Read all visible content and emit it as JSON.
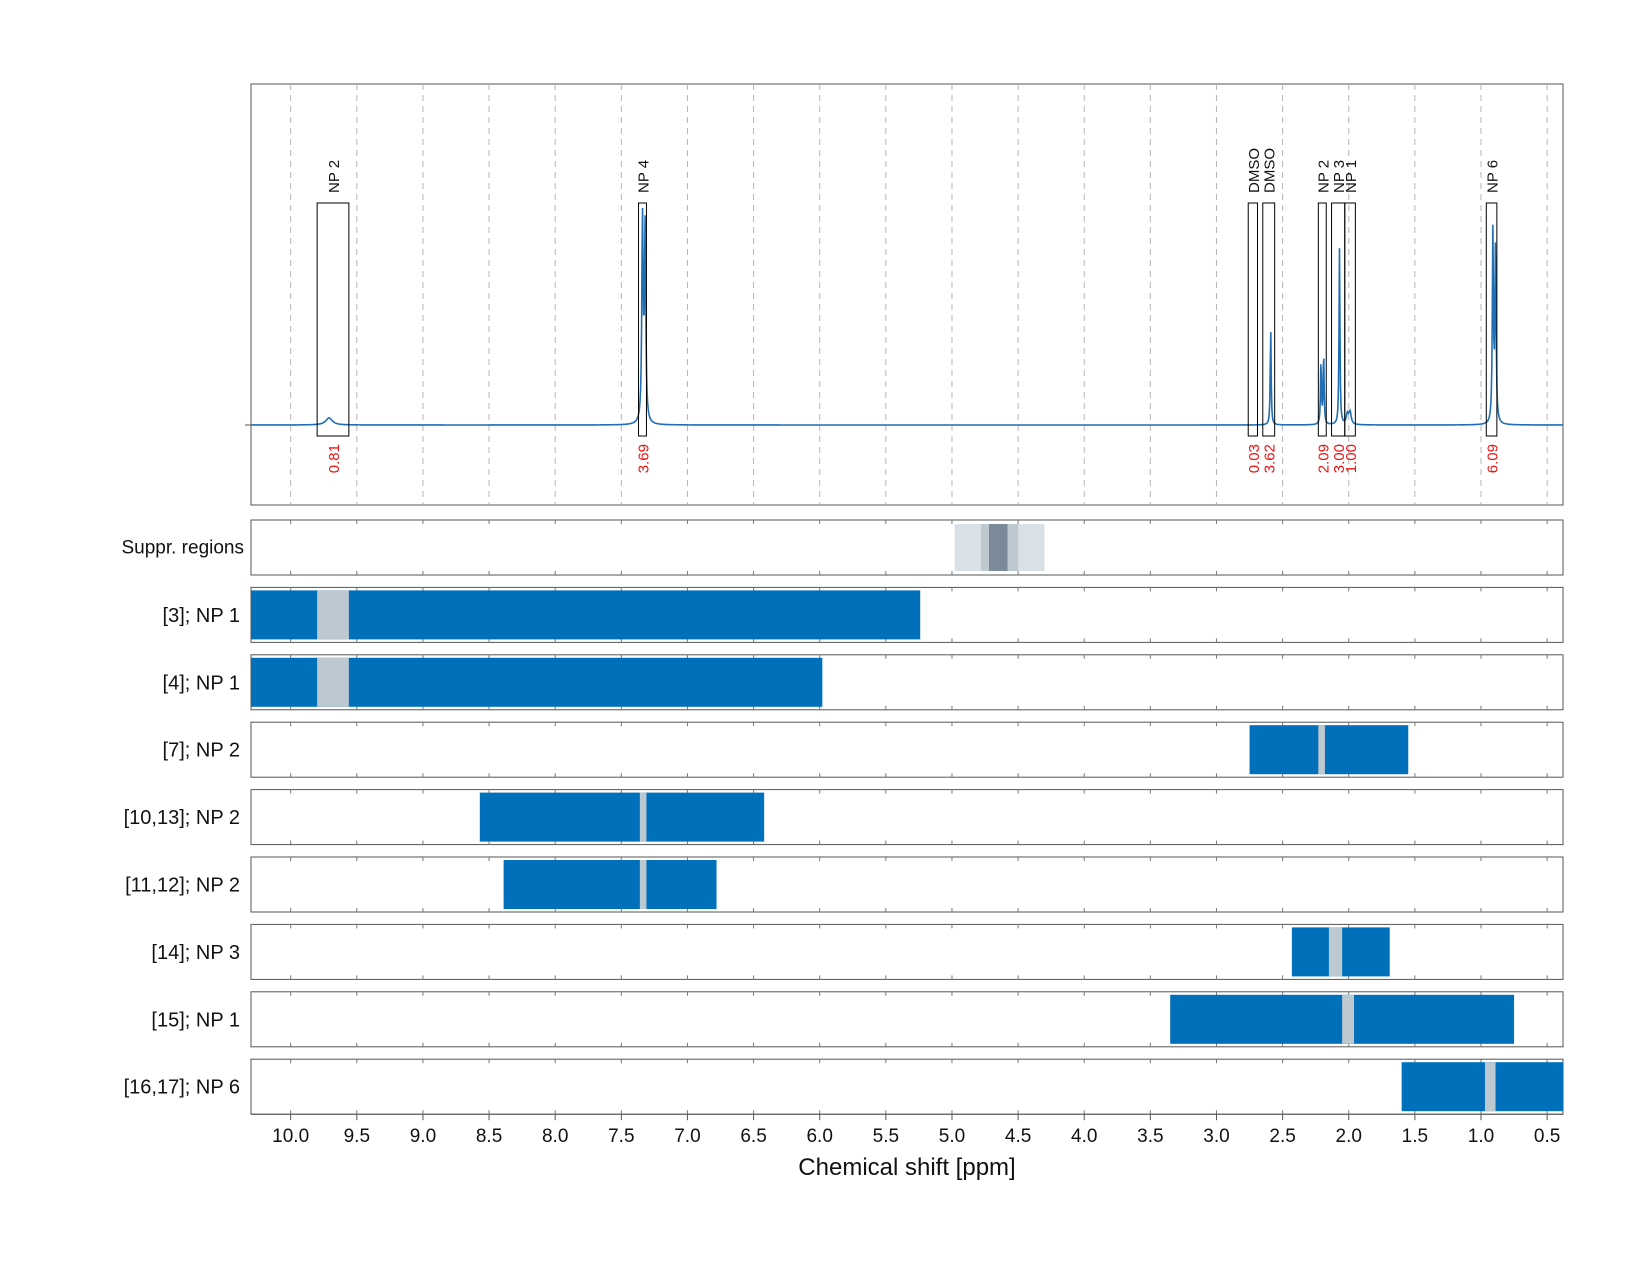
{
  "chart_data": {
    "type": "line",
    "xlabel": "Chemical shift [ppm]",
    "x_ticks": [
      "10.0",
      "9.5",
      "9.0",
      "8.5",
      "8.0",
      "7.5",
      "7.0",
      "6.5",
      "6.0",
      "5.5",
      "5.0",
      "4.5",
      "4.0",
      "3.5",
      "3.0",
      "2.5",
      "2.0",
      "1.5",
      "1.0",
      "0.5"
    ],
    "x_tick_values": [
      10.0,
      9.5,
      9.0,
      8.5,
      8.0,
      7.5,
      7.0,
      6.5,
      6.0,
      5.5,
      5.0,
      4.5,
      4.0,
      3.5,
      3.0,
      2.5,
      2.0,
      1.5,
      1.0,
      0.5
    ],
    "xlim": [
      10.3,
      0.38
    ],
    "x_reversed": true,
    "grid": "vertical dashed",
    "colors": {
      "spectrum": "#1f6fb5",
      "region_bar": "#0070bb",
      "region_center": "#bdc9d1",
      "suppr_light": "#d9e0e6",
      "suppr_mid": "#bdc9d1",
      "suppr_dark": "#7a8a98",
      "integral_text": "#ee1111",
      "box_stroke": "#000000"
    },
    "spectrum": {
      "baseline": 0,
      "peaks": [
        {
          "center": 9.71,
          "height": 0.035,
          "width": 0.03
        },
        {
          "center": 7.34,
          "height": 1.0,
          "width": 0.006
        },
        {
          "center": 7.32,
          "height": 0.95,
          "width": 0.006
        },
        {
          "center": 2.59,
          "height": 0.48,
          "width": 0.004
        },
        {
          "center": 2.21,
          "height": 0.32,
          "width": 0.004
        },
        {
          "center": 2.19,
          "height": 0.36,
          "width": 0.004
        },
        {
          "center": 2.07,
          "height": 0.87,
          "width": 0.004
        },
        {
          "center": 2.01,
          "height": 0.05,
          "width": 0.01
        },
        {
          "center": 1.99,
          "height": 0.06,
          "width": 0.01
        },
        {
          "center": 0.91,
          "height": 0.94,
          "width": 0.005
        },
        {
          "center": 0.89,
          "height": 0.89,
          "width": 0.005
        }
      ]
    },
    "annotations": [
      {
        "label": "NP 2",
        "integral": "0.81",
        "x_start": 9.8,
        "x_end": 9.56
      },
      {
        "label": "NP 4",
        "integral": "3.69",
        "x_start": 7.37,
        "x_end": 7.31
      },
      {
        "label": "DMSO",
        "integral": "0.03",
        "x_start": 2.76,
        "x_end": 2.69
      },
      {
        "label": "DMSO",
        "integral": "3.62",
        "x_start": 2.65,
        "x_end": 2.56
      },
      {
        "label": "NP 2",
        "integral": "2.09",
        "x_start": 2.23,
        "x_end": 2.17
      },
      {
        "label": "NP 3",
        "integral": "3.00",
        "x_start": 2.13,
        "x_end": 2.03
      },
      {
        "label": "NP 1",
        "integral": "1.00",
        "x_start": 2.03,
        "x_end": 1.95
      },
      {
        "label": "NP 6",
        "integral": "6.09",
        "x_start": 0.96,
        "x_end": 0.88
      }
    ],
    "suppression": {
      "label": "Suppr. regions",
      "bands": [
        {
          "x_start": 4.98,
          "x_end": 4.3,
          "level": "light"
        },
        {
          "x_start": 4.78,
          "x_end": 4.5,
          "level": "mid"
        },
        {
          "x_start": 4.72,
          "x_end": 4.58,
          "level": "dark"
        }
      ]
    },
    "search_regions": [
      {
        "label": "[3]; NP 1",
        "x_start": 10.3,
        "x_end": 5.24,
        "center_start": 9.8,
        "center_end": 9.56
      },
      {
        "label": "[4]; NP 1",
        "x_start": 10.3,
        "x_end": 5.98,
        "center_start": 9.8,
        "center_end": 9.56
      },
      {
        "label": "[7]; NP 2",
        "x_start": 2.75,
        "x_end": 1.55,
        "center_start": 2.23,
        "center_end": 2.18
      },
      {
        "label": "[10,13]; NP 2",
        "x_start": 8.57,
        "x_end": 6.42,
        "center_start": 7.36,
        "center_end": 7.31
      },
      {
        "label": "[11,12]; NP 2",
        "x_start": 8.39,
        "x_end": 6.78,
        "center_start": 7.36,
        "center_end": 7.31
      },
      {
        "label": "[14]; NP 3",
        "x_start": 2.43,
        "x_end": 1.69,
        "center_start": 2.15,
        "center_end": 2.05
      },
      {
        "label": "[15]; NP 1",
        "x_start": 3.35,
        "x_end": 0.75,
        "center_start": 2.05,
        "center_end": 1.96
      },
      {
        "label": "[16,17]; NP 6",
        "x_start": 1.6,
        "x_end": 0.38,
        "center_start": 0.97,
        "center_end": 0.89
      }
    ]
  }
}
